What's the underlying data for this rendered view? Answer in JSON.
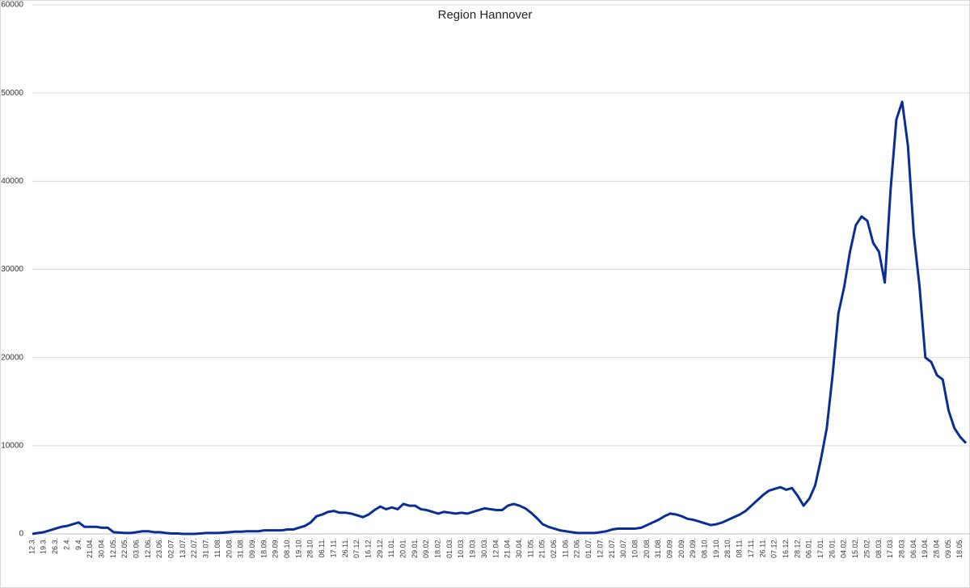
{
  "chart_data": {
    "type": "line",
    "title": "Region Hannover",
    "categories": [
      "12.3.",
      null,
      "19.3.",
      null,
      "26.3.",
      null,
      "2.4.",
      null,
      "9.4.",
      null,
      "21.04.",
      null,
      "30.04.",
      null,
      "12.05.",
      null,
      "22.05.",
      null,
      "03.06.",
      null,
      "12.06.",
      null,
      "23.06.",
      null,
      "02.07.",
      null,
      "13.07.",
      null,
      "22.07.",
      null,
      "31.07.",
      null,
      "11.08.",
      null,
      "20.08.",
      null,
      "31.08.",
      null,
      "09.09.",
      null,
      "18.09.",
      null,
      "29.09.",
      null,
      "08.10.",
      null,
      "19.10.",
      null,
      "28.10.",
      null,
      "06.11.",
      null,
      "17.11.",
      null,
      "26.11.",
      null,
      "07.12.",
      null,
      "16.12.",
      null,
      "29.12.",
      null,
      "11.01.",
      null,
      "20.01.",
      null,
      "29.01.",
      null,
      "09.02.",
      null,
      "18.02.",
      null,
      "01.03.",
      null,
      "10.03.",
      null,
      "19.03.",
      null,
      "30.03.",
      null,
      "12.04.",
      null,
      "21.04.",
      null,
      "30.04.",
      null,
      "11.05.",
      null,
      "21.05.",
      null,
      "02.06.",
      null,
      "11.06.",
      null,
      "22.06.",
      null,
      "01.07.",
      null,
      "12.07.",
      null,
      "21.07.",
      null,
      "30.07.",
      null,
      "10.08.",
      null,
      "20.08.",
      null,
      "31.08.",
      null,
      "09.09.",
      null,
      "20.09.",
      null,
      "29.09.",
      null,
      "08.10.",
      null,
      "19.10.",
      null,
      "28.10.",
      null,
      "08.11.",
      null,
      "17.11.",
      null,
      "26.11.",
      null,
      "07.12.",
      null,
      "16.12.",
      null,
      "28.12.",
      null,
      "06.01.",
      null,
      "17.01.",
      null,
      "26.01.",
      null,
      "04.02.",
      null,
      "15.02.",
      null,
      "25.02.",
      null,
      "08.03.",
      null,
      "17.03.",
      null,
      "28.03.",
      null,
      "06.04.",
      null,
      "19.04.",
      null,
      "28.04.",
      null,
      "09.05.",
      null,
      "18.05.",
      null
    ],
    "series": [
      {
        "name": "Region Hannover",
        "color": "#0a2d96",
        "values": [
          0,
          100,
          200,
          400,
          600,
          800,
          900,
          1100,
          1300,
          800,
          800,
          800,
          700,
          700,
          200,
          150,
          100,
          100,
          200,
          300,
          300,
          200,
          200,
          100,
          50,
          50,
          0,
          0,
          0,
          50,
          100,
          100,
          100,
          150,
          200,
          250,
          250,
          300,
          300,
          300,
          400,
          400,
          400,
          400,
          500,
          500,
          700,
          900,
          1300,
          2000,
          2200,
          2500,
          2600,
          2400,
          2400,
          2300,
          2100,
          1900,
          2200,
          2700,
          3100,
          2800,
          3000,
          2800,
          3400,
          3200,
          3200,
          2800,
          2700,
          2500,
          2300,
          2500,
          2400,
          2300,
          2400,
          2300,
          2500,
          2700,
          2900,
          2800,
          2700,
          2700,
          3200,
          3400,
          3200,
          2900,
          2400,
          1800,
          1100,
          800,
          600,
          400,
          300,
          200,
          100,
          100,
          100,
          100,
          200,
          300,
          500,
          600,
          600,
          600,
          600,
          700,
          1000,
          1300,
          1600,
          2000,
          2300,
          2200,
          2000,
          1700,
          1600,
          1400,
          1200,
          1000,
          1100,
          1300,
          1600,
          1900,
          2200,
          2600,
          3200,
          3800,
          4400,
          4900,
          5100,
          5300,
          5000,
          5200,
          4300,
          3200,
          4000,
          5500,
          8500,
          12000,
          18000,
          25000,
          28000,
          32000,
          35000,
          36000,
          35500,
          33000,
          32000,
          28500,
          39000,
          47000,
          49000,
          44000,
          34000,
          28000,
          20000,
          19500,
          18000,
          17500,
          14000,
          12000,
          11000,
          10300
        ]
      }
    ],
    "ylim": [
      0,
      60000
    ],
    "yticks": [
      0,
      10000,
      20000,
      30000,
      40000,
      50000,
      60000
    ],
    "grid": true
  }
}
